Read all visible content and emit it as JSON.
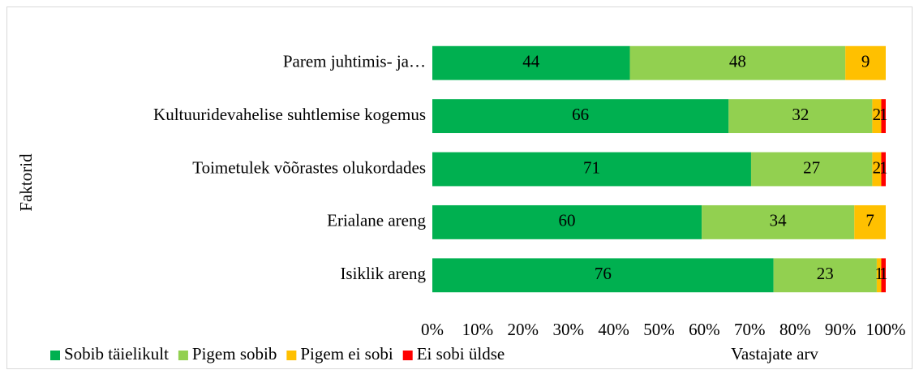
{
  "chart_data": {
    "type": "bar",
    "orientation": "horizontal",
    "stacking": "percent",
    "categories": [
      "Parem juhtimis- ja…",
      "Kultuuridevahelise suhtlemise kogemus",
      "Toimetulek võõrastes olukordades",
      "Erialane areng",
      "Isiklik areng"
    ],
    "series": [
      {
        "name": "Sobib täielikult",
        "color": "#00b050",
        "values": [
          44,
          66,
          71,
          60,
          76
        ]
      },
      {
        "name": "Pigem sobib",
        "color": "#92d050",
        "values": [
          48,
          32,
          27,
          34,
          23
        ]
      },
      {
        "name": "Pigem ei sobi",
        "color": "#ffc000",
        "values": [
          9,
          2,
          2,
          7,
          1
        ]
      },
      {
        "name": "Ei sobi üldse",
        "color": "#ff0000",
        "values": [
          null,
          1,
          1,
          null,
          1
        ]
      }
    ],
    "xlim": [
      0,
      100
    ],
    "xticks": [
      {
        "value": 0,
        "label": "0%"
      },
      {
        "value": 10,
        "label": "10%"
      },
      {
        "value": 20,
        "label": "20%"
      },
      {
        "value": 30,
        "label": "30%"
      },
      {
        "value": 40,
        "label": "40%"
      },
      {
        "value": 50,
        "label": "50%"
      },
      {
        "value": 60,
        "label": "60%"
      },
      {
        "value": 70,
        "label": "70%"
      },
      {
        "value": 80,
        "label": "80%"
      },
      {
        "value": 90,
        "label": "90%"
      },
      {
        "value": 100,
        "label": "100%"
      }
    ],
    "xlabel": "Vastajate arv",
    "ylabel": "Faktorid",
    "legend": "bottom",
    "data_labels": true,
    "grid": false
  }
}
